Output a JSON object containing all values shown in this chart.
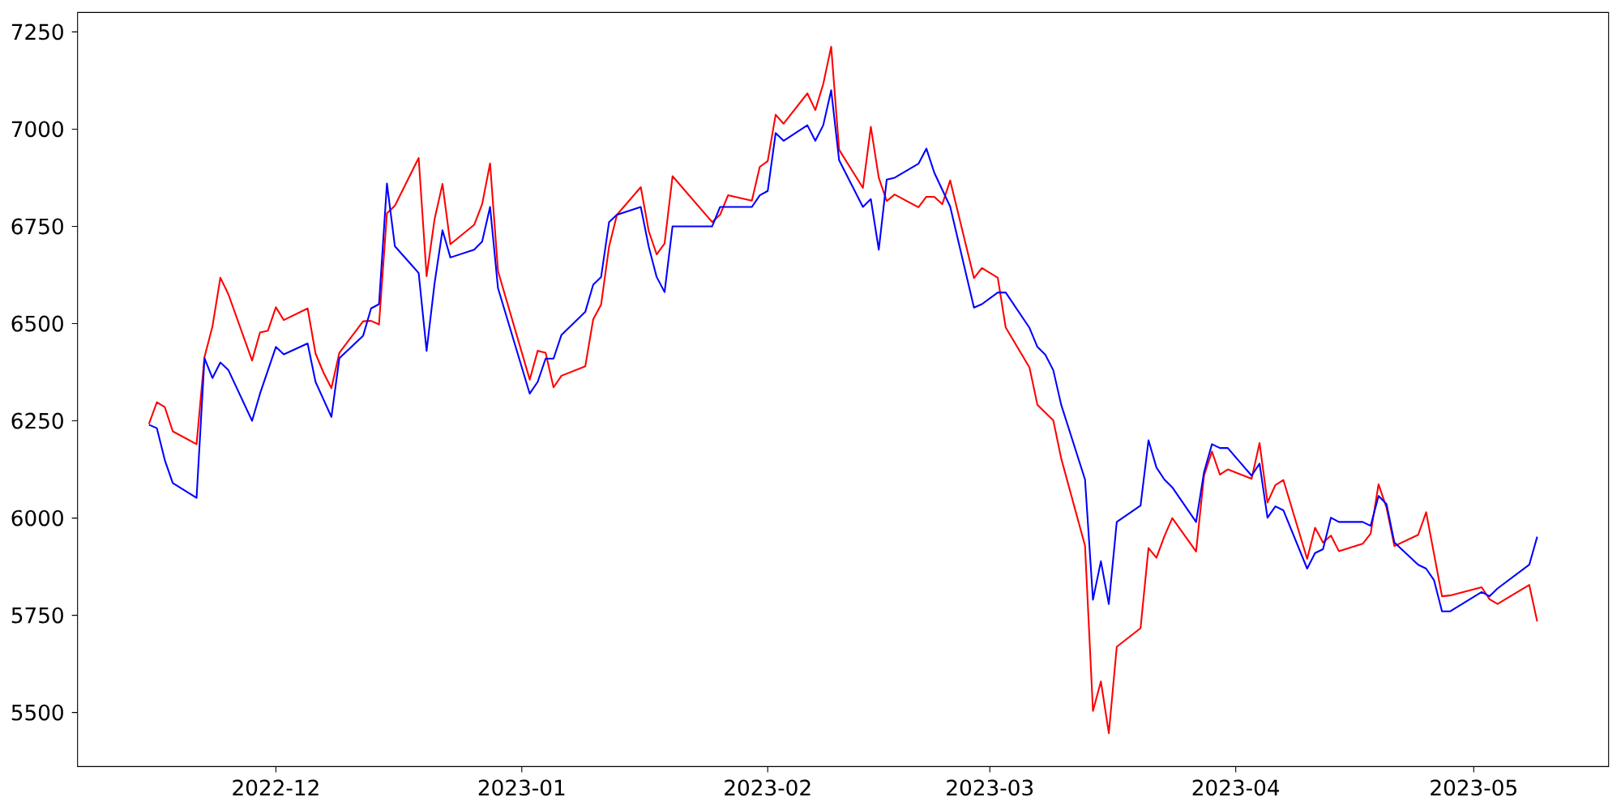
{
  "chart_data": {
    "type": "line",
    "xlim": [
      "2022-11-06",
      "2023-05-18"
    ],
    "ylim": [
      5361,
      7300
    ],
    "xticks": [
      {
        "value": "2022-12-01",
        "label": "2022-12"
      },
      {
        "value": "2023-01-01",
        "label": "2023-01"
      },
      {
        "value": "2023-02-01",
        "label": "2023-02"
      },
      {
        "value": "2023-03-01",
        "label": "2023-03"
      },
      {
        "value": "2023-04-01",
        "label": "2023-04"
      },
      {
        "value": "2023-05-01",
        "label": "2023-05"
      }
    ],
    "yticks": [
      5500,
      5750,
      6000,
      6250,
      6500,
      6750,
      7000,
      7250
    ],
    "series": [
      {
        "color": "#ff0000",
        "x": [
          "2022-11-15",
          "2022-11-16",
          "2022-11-17",
          "2022-11-18",
          "2022-11-21",
          "2022-11-22",
          "2022-11-23",
          "2022-11-24",
          "2022-11-25",
          "2022-11-28",
          "2022-11-29",
          "2022-11-30",
          "2022-12-01",
          "2022-12-02",
          "2022-12-05",
          "2022-12-06",
          "2022-12-07",
          "2022-12-08",
          "2022-12-09",
          "2022-12-12",
          "2022-12-13",
          "2022-12-14",
          "2022-12-15",
          "2022-12-16",
          "2022-12-19",
          "2022-12-20",
          "2022-12-21",
          "2022-12-22",
          "2022-12-23",
          "2022-12-26",
          "2022-12-27",
          "2022-12-28",
          "2022-12-29",
          "2023-01-02",
          "2023-01-03",
          "2023-01-04",
          "2023-01-05",
          "2023-01-06",
          "2023-01-09",
          "2023-01-10",
          "2023-01-11",
          "2023-01-12",
          "2023-01-13",
          "2023-01-16",
          "2023-01-17",
          "2023-01-18",
          "2023-01-19",
          "2023-01-20",
          "2023-01-25",
          "2023-01-26",
          "2023-01-27",
          "2023-01-30",
          "2023-01-31",
          "2023-02-01",
          "2023-02-02",
          "2023-02-03",
          "2023-02-06",
          "2023-02-07",
          "2023-02-08",
          "2023-02-09",
          "2023-02-10",
          "2023-02-13",
          "2023-02-14",
          "2023-02-15",
          "2023-02-16",
          "2023-02-17",
          "2023-02-20",
          "2023-02-21",
          "2023-02-22",
          "2023-02-23",
          "2023-02-24",
          "2023-02-27",
          "2023-02-28",
          "2023-03-02",
          "2023-03-03",
          "2023-03-06",
          "2023-03-07",
          "2023-03-09",
          "2023-03-10",
          "2023-03-13",
          "2023-03-14",
          "2023-03-15",
          "2023-03-16",
          "2023-03-17",
          "2023-03-20",
          "2023-03-21",
          "2023-03-22",
          "2023-03-23",
          "2023-03-24",
          "2023-03-27",
          "2023-03-28",
          "2023-03-29",
          "2023-03-30",
          "2023-03-31",
          "2023-04-03",
          "2023-04-04",
          "2023-04-05",
          "2023-04-06",
          "2023-04-07",
          "2023-04-10",
          "2023-04-11",
          "2023-04-12",
          "2023-04-13",
          "2023-04-14",
          "2023-04-17",
          "2023-04-18",
          "2023-04-19",
          "2023-04-20",
          "2023-04-21",
          "2023-04-24",
          "2023-04-25",
          "2023-04-27",
          "2023-04-28",
          "2023-05-02",
          "2023-05-03",
          "2023-05-04",
          "2023-05-08",
          "2023-05-09"
        ],
        "values": [
          6242,
          6298,
          6285,
          6223,
          6190,
          6414,
          6492,
          6618,
          6576,
          6405,
          6477,
          6482,
          6542,
          6509,
          6539,
          6423,
          6374,
          6334,
          6425,
          6506,
          6507,
          6498,
          6784,
          6803,
          6926,
          6622,
          6768,
          6859,
          6704,
          6754,
          6807,
          6912,
          6635,
          6356,
          6430,
          6425,
          6336,
          6366,
          6390,
          6511,
          6549,
          6698,
          6780,
          6851,
          6738,
          6678,
          6706,
          6879,
          6761,
          6780,
          6830,
          6816,
          6903,
          6918,
          7037,
          7014,
          7092,
          7049,
          7116,
          7212,
          6947,
          6849,
          7006,
          6875,
          6815,
          6832,
          6799,
          6826,
          6826,
          6807,
          6868,
          6617,
          6643,
          6618,
          6490,
          6387,
          6291,
          6251,
          6153,
          5929,
          5504,
          5580,
          5447,
          5669,
          5717,
          5923,
          5898,
          5953,
          6000,
          5914,
          6109,
          6171,
          6112,
          6125,
          6101,
          6193,
          6040,
          6085,
          6098,
          5895,
          5975,
          5937,
          5955,
          5915,
          5934,
          5960,
          6087,
          6027,
          5928,
          5957,
          6015,
          5799,
          5801,
          5822,
          5791,
          5779,
          5828,
          5734
        ]
      },
      {
        "color": "#0000ff",
        "x": [
          "2022-11-15",
          "2022-11-16",
          "2022-11-17",
          "2022-11-18",
          "2022-11-21",
          "2022-11-22",
          "2022-11-23",
          "2022-11-24",
          "2022-11-25",
          "2022-11-28",
          "2022-11-29",
          "2022-11-30",
          "2022-12-01",
          "2022-12-02",
          "2022-12-05",
          "2022-12-06",
          "2022-12-07",
          "2022-12-08",
          "2022-12-09",
          "2022-12-12",
          "2022-12-13",
          "2022-12-14",
          "2022-12-15",
          "2022-12-16",
          "2022-12-19",
          "2022-12-20",
          "2022-12-21",
          "2022-12-22",
          "2022-12-23",
          "2022-12-26",
          "2022-12-27",
          "2022-12-28",
          "2022-12-29",
          "2023-01-02",
          "2023-01-03",
          "2023-01-04",
          "2023-01-05",
          "2023-01-06",
          "2023-01-09",
          "2023-01-10",
          "2023-01-11",
          "2023-01-12",
          "2023-01-13",
          "2023-01-16",
          "2023-01-17",
          "2023-01-18",
          "2023-01-19",
          "2023-01-20",
          "2023-01-25",
          "2023-01-26",
          "2023-01-27",
          "2023-01-30",
          "2023-01-31",
          "2023-02-01",
          "2023-02-02",
          "2023-02-03",
          "2023-02-06",
          "2023-02-07",
          "2023-02-08",
          "2023-02-09",
          "2023-02-10",
          "2023-02-13",
          "2023-02-14",
          "2023-02-15",
          "2023-02-16",
          "2023-02-17",
          "2023-02-20",
          "2023-02-21",
          "2023-02-22",
          "2023-02-24",
          "2023-02-27",
          "2023-02-28",
          "2023-03-02",
          "2023-03-03",
          "2023-03-06",
          "2023-03-07",
          "2023-03-08",
          "2023-03-09",
          "2023-03-10",
          "2023-03-13",
          "2023-03-14",
          "2023-03-15",
          "2023-03-16",
          "2023-03-17",
          "2023-03-20",
          "2023-03-21",
          "2023-03-22",
          "2023-03-23",
          "2023-03-24",
          "2023-03-27",
          "2023-03-28",
          "2023-03-29",
          "2023-03-30",
          "2023-03-31",
          "2023-04-03",
          "2023-04-04",
          "2023-04-05",
          "2023-04-06",
          "2023-04-07",
          "2023-04-10",
          "2023-04-11",
          "2023-04-12",
          "2023-04-13",
          "2023-04-14",
          "2023-04-17",
          "2023-04-18",
          "2023-04-19",
          "2023-04-20",
          "2023-04-21",
          "2023-04-24",
          "2023-04-25",
          "2023-04-26",
          "2023-04-27",
          "2023-04-28",
          "2023-05-02",
          "2023-05-03",
          "2023-05-04",
          "2023-05-08",
          "2023-05-09"
        ],
        "values": [
          6240,
          6231,
          6149,
          6090,
          6052,
          6411,
          6360,
          6400,
          6381,
          6250,
          6320,
          6380,
          6440,
          6421,
          6449,
          6350,
          6305,
          6260,
          6411,
          6469,
          6539,
          6550,
          6860,
          6699,
          6630,
          6430,
          6603,
          6740,
          6670,
          6690,
          6711,
          6800,
          6591,
          6320,
          6350,
          6410,
          6410,
          6471,
          6530,
          6600,
          6620,
          6761,
          6780,
          6800,
          6698,
          6620,
          6581,
          6750,
          6750,
          6800,
          6800,
          6800,
          6830,
          6841,
          6990,
          6970,
          7010,
          6970,
          7010,
          7100,
          6920,
          6800,
          6820,
          6690,
          6870,
          6875,
          6911,
          6950,
          6888,
          6801,
          6541,
          6550,
          6580,
          6580,
          6489,
          6440,
          6420,
          6380,
          6291,
          6099,
          5790,
          5889,
          5779,
          5990,
          6032,
          6200,
          6130,
          6099,
          6079,
          5990,
          6118,
          6190,
          6180,
          6180,
          6109,
          6140,
          6001,
          6030,
          6020,
          5870,
          5910,
          5920,
          6001,
          5990,
          5990,
          5980,
          6057,
          6036,
          5937,
          5880,
          5870,
          5840,
          5760,
          5760,
          5810,
          5799,
          5819,
          5880,
          5952
        ]
      }
    ]
  }
}
